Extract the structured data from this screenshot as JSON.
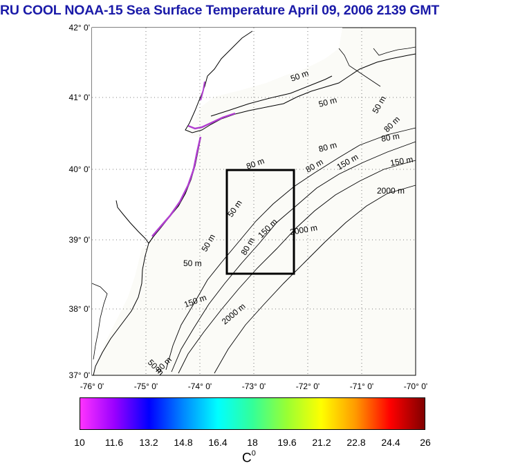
{
  "title": "RU COOL  NOAA-15 Sea Surface Temperature April 09, 2006 2139 GMT",
  "map": {
    "lat_labels": [
      "42° 0'",
      "41° 0'",
      "40° 0'",
      "39° 0'",
      "38° 0'",
      "37° 0'"
    ],
    "lon_labels": [
      "-76° 0'",
      "-75° 0'",
      "-74° 0'",
      "-73° 0'",
      "-72° 0'",
      "-71° 0'",
      "-70° 0'"
    ],
    "contour_labels": [
      "50 m",
      "50 m",
      "50 m",
      "50 m",
      "80 m",
      "80 m",
      "80 m",
      "80 m",
      "150 m",
      "150 m",
      "150 m",
      "2000 m",
      "2000 m",
      "2000 m",
      "50 m",
      "80 m",
      "150 m",
      "50 m",
      "80 m",
      "50 m",
      "80 m"
    ],
    "study_box": "black rectangle",
    "land_color": "#ffffff",
    "ocean_color": "#fbfbf7"
  },
  "colorbar": {
    "ticks": [
      "10",
      "11.6",
      "13.2",
      "14.8",
      "16.4",
      "18",
      "19.6",
      "21.2",
      "22.8",
      "24.4",
      "26"
    ],
    "unit_base": "C",
    "unit_sup": "0",
    "colors": [
      "#ff33ff",
      "#9900ff",
      "#0000ff",
      "#0088ff",
      "#00ffff",
      "#33ff99",
      "#99ff33",
      "#ffff00",
      "#ff9900",
      "#ff0000",
      "#800000"
    ]
  }
}
